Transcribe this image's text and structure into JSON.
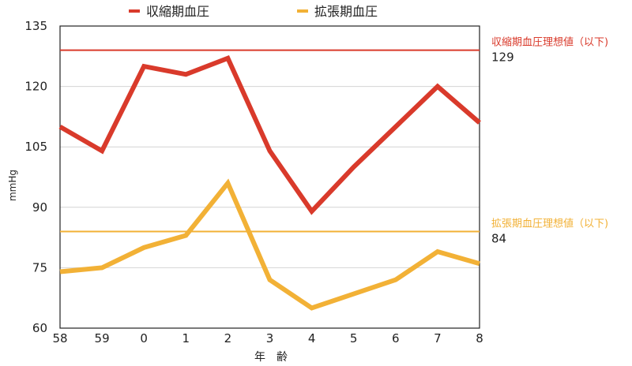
{
  "chart_data": {
    "type": "line",
    "categories": [
      "58",
      "59",
      "0",
      "1",
      "2",
      "3",
      "4",
      "5",
      "6",
      "7",
      "8"
    ],
    "xlabel": "年　齢",
    "ylabel": "mmHg",
    "ylim": [
      60,
      135
    ],
    "yticks": [
      60,
      75,
      90,
      105,
      120,
      135
    ],
    "grid": true,
    "legend_position": "top",
    "series": [
      {
        "name": "収縮期血圧",
        "color": "#d93a2b",
        "values": [
          110,
          104,
          125,
          123,
          127,
          104,
          89,
          100,
          110,
          120,
          111
        ]
      },
      {
        "name": "拡張期血圧",
        "color": "#f2b136",
        "values": [
          74,
          75,
          80,
          83,
          96,
          72,
          65,
          68.5,
          72,
          79,
          76
        ]
      }
    ],
    "reference_lines": [
      {
        "label": "収縮期血圧理想値（以下)",
        "value": 129,
        "value_text": "129",
        "color": "#d93a2b"
      },
      {
        "label": "拡張期血圧理想値（以下)",
        "value": 84,
        "value_text": "84",
        "color": "#f2b136"
      }
    ]
  }
}
